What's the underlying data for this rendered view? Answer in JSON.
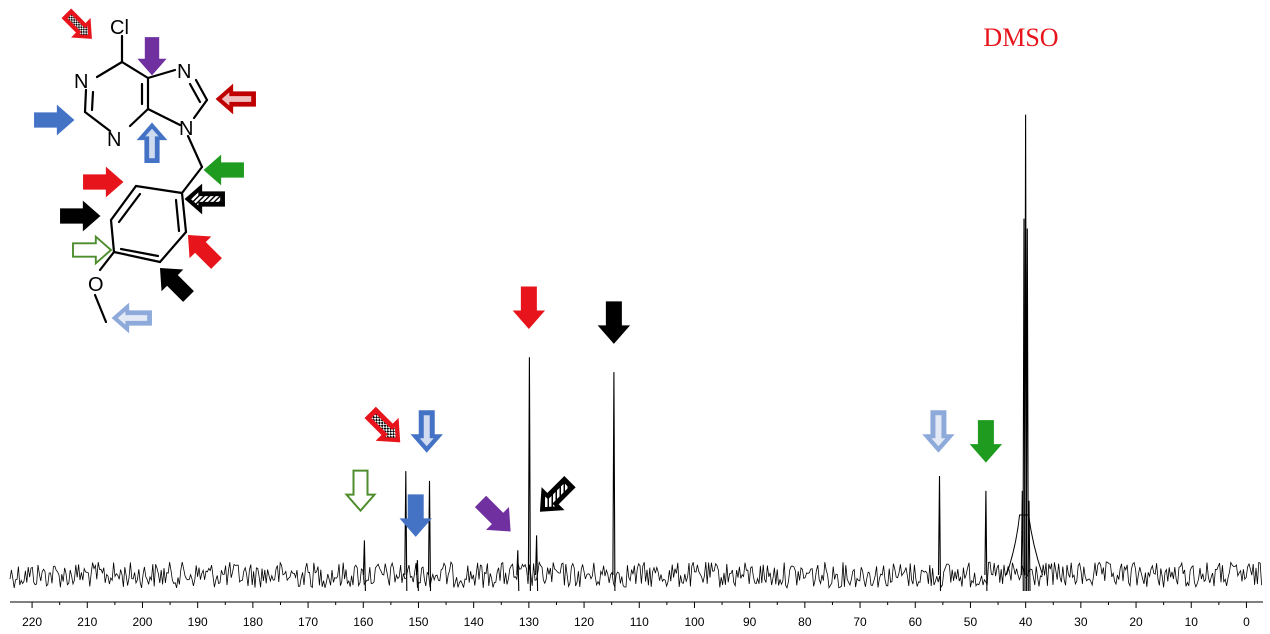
{
  "chart_data": {
    "type": "line",
    "title": "",
    "xlabel": "",
    "ylabel": "",
    "xlim": [
      224,
      -3
    ],
    "x_reversed": true,
    "x_ticks": [
      220,
      210,
      200,
      190,
      180,
      170,
      160,
      150,
      140,
      130,
      120,
      110,
      100,
      90,
      80,
      70,
      60,
      50,
      40,
      30,
      20,
      10,
      0
    ],
    "grid": false,
    "solvent_label": {
      "text": "DMSO",
      "color": "#e8141c",
      "x": 40
    },
    "series": [
      {
        "peaks": [
          {
            "x": 159.8,
            "height": 0.07
          },
          {
            "x": 152.3,
            "height": 0.21
          },
          {
            "x": 150.2,
            "height": 0.03
          },
          {
            "x": 148.0,
            "height": 0.19
          },
          {
            "x": 132.0,
            "height": 0.05
          },
          {
            "x": 129.9,
            "height": 0.44
          },
          {
            "x": 128.6,
            "height": 0.08
          },
          {
            "x": 114.6,
            "height": 0.41
          },
          {
            "x": 55.6,
            "height": 0.2
          },
          {
            "x": 47.2,
            "height": 0.17
          },
          {
            "x": 40.6,
            "height": 0.17
          },
          {
            "x": 40.3,
            "height": 0.72
          },
          {
            "x": 40.0,
            "height": 0.93
          },
          {
            "x": 39.7,
            "height": 0.7
          },
          {
            "x": 39.4,
            "height": 0.15
          }
        ]
      }
    ],
    "annotations": [
      {
        "label": "open green arrow",
        "x": 160.5,
        "y": 0.13,
        "color": "#4e8d2e",
        "style": "open",
        "direction": "down"
      },
      {
        "label": "checkered red arrow",
        "x": 153.5,
        "y": 0.27,
        "color": "#e8141c",
        "style": "checker",
        "direction": "down-right"
      },
      {
        "label": "solid blue arrow",
        "x": 150.5,
        "y": 0.08,
        "color": "#4472c4",
        "style": "solid",
        "direction": "down"
      },
      {
        "label": "striped blue arrow",
        "x": 148.5,
        "y": 0.25,
        "color": "#4472c4",
        "style": "striped",
        "direction": "down"
      },
      {
        "label": "solid purple arrow",
        "x": 133.5,
        "y": 0.09,
        "color": "#7030a0",
        "style": "solid",
        "direction": "down-right"
      },
      {
        "label": "hatched black arrow",
        "x": 127.8,
        "y": 0.13,
        "color": "#000000",
        "style": "hatched",
        "direction": "down-left"
      },
      {
        "label": "solid red arrow",
        "x": 130.0,
        "y": 0.5,
        "color": "#e8141c",
        "style": "solid",
        "direction": "down"
      },
      {
        "label": "solid black arrow",
        "x": 114.6,
        "y": 0.47,
        "color": "#000000",
        "style": "solid",
        "direction": "down"
      },
      {
        "label": "dotted light-blue arrow",
        "x": 55.8,
        "y": 0.25,
        "color": "#8eaadb",
        "style": "dotted",
        "direction": "down"
      },
      {
        "label": "solid green arrow",
        "x": 47.2,
        "y": 0.23,
        "color": "#1f9b1f",
        "style": "solid",
        "direction": "down"
      }
    ],
    "structure": {
      "atom_labels": [
        "Cl",
        "N",
        "N",
        "N",
        "N",
        "O"
      ],
      "arrows": [
        {
          "label": "C6 checkered red",
          "color": "#e8141c",
          "style": "checker"
        },
        {
          "label": "C5 solid purple",
          "color": "#7030a0",
          "style": "solid"
        },
        {
          "label": "C8 dotted dark red",
          "color": "#c00000",
          "style": "dotted"
        },
        {
          "label": "C2 solid blue",
          "color": "#4472c4",
          "style": "solid"
        },
        {
          "label": "C4 striped blue",
          "color": "#4472c4",
          "style": "striped"
        },
        {
          "label": "CH2 solid green",
          "color": "#1f9b1f",
          "style": "solid"
        },
        {
          "label": "ortho CH solid red",
          "color": "#e8141c",
          "style": "solid"
        },
        {
          "label": "ipso C hatched black",
          "color": "#000000",
          "style": "hatched"
        },
        {
          "label": "meta CH solid black",
          "color": "#000000",
          "style": "solid"
        },
        {
          "label": "C-O open green",
          "color": "#4e8d2e",
          "style": "open"
        },
        {
          "label": "ortho CH solid red 2",
          "color": "#e8141c",
          "style": "solid"
        },
        {
          "label": "meta CH solid black 2",
          "color": "#000000",
          "style": "solid"
        },
        {
          "label": "OCH3 dotted light blue",
          "color": "#8eaadb",
          "style": "dotted"
        }
      ]
    }
  }
}
